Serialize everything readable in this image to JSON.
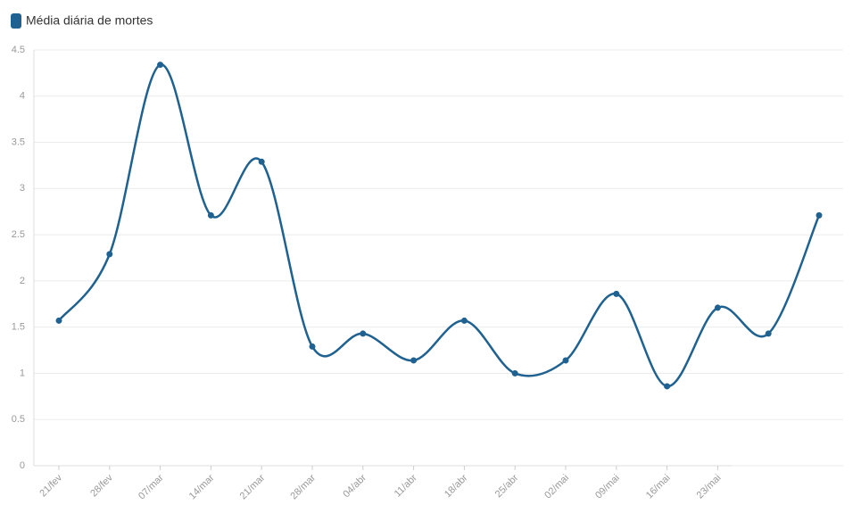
{
  "chart_data": {
    "type": "line",
    "categories": [
      "21/fev",
      "28/fev",
      "07/mar",
      "14/mar",
      "21/mar",
      "28/mar",
      "04/abr",
      "11/abr",
      "18/abr",
      "25/abr",
      "02/mai",
      "09/mai",
      "16/mai",
      "23/mai",
      null,
      null
    ],
    "series": [
      {
        "name": "Média diária de mortes",
        "color": "#1f6190",
        "values": [
          1.57,
          2.29,
          4.34,
          2.71,
          3.29,
          1.29,
          1.43,
          1.14,
          1.57,
          1.0,
          1.14,
          1.86,
          0.86,
          1.71,
          1.43,
          2.71
        ]
      }
    ],
    "ylim": [
      0,
      4.5
    ],
    "yticks": [
      0,
      0.5,
      1,
      1.5,
      2,
      2.5,
      3,
      3.5,
      4,
      4.5
    ],
    "grid": true,
    "legend": "top-left"
  }
}
